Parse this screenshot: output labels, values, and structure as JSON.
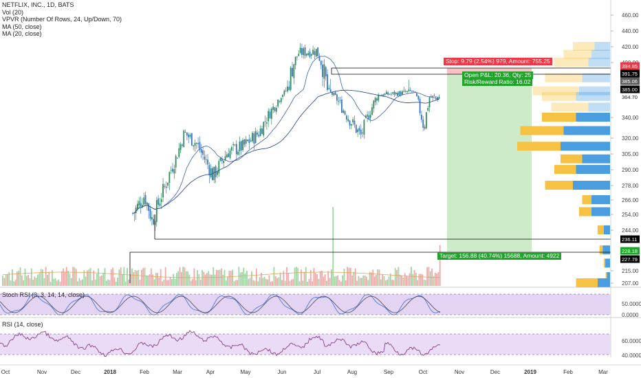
{
  "legend": {
    "title": "NETFLIX, INC., 1D, BATS",
    "vol": "Vol (20)",
    "vpvr": "VPVR (Number Of Rows, 24, Up/Down, 70)",
    "ma50": "MA (50, close)",
    "ma20": "MA (20, close)"
  },
  "panes": {
    "stoch_title": "Stoch RSI (3, 3, 14, 14, close)",
    "rsi_title": "RSI (14, close)"
  },
  "position": {
    "stop_label": "Stop: 9.79 (2.54%) 979, Amount: 755.25",
    "open_label": "Open P&L: 20.36, Qty: 25",
    "rr_label": "Risk/Reward Ratio: 16.02",
    "target_label": "Target: 156.88 (40.74%) 15688, Amount: 4922"
  },
  "price_labels": {
    "stop": "394.85",
    "hline_top": "391.75",
    "mid": "385.06",
    "entry": "385.00",
    "last": "364.70",
    "hline_low": "236.11",
    "target": "228.18",
    "support": "227.79"
  },
  "colors": {
    "up": "#2e8b57",
    "down": "#3b73c7",
    "ma": "#4a6fb0",
    "stop_red": "#f23645",
    "target_green": "#22a32b",
    "profit_zone": "#c6e8c0",
    "vpvr_up": "#f5c243",
    "vpvr_down": "#4a9ee0",
    "stoch_bg": "#e3d4f3",
    "rsi_bg": "#eadcf6"
  },
  "chart_data": {
    "type": "candlestick",
    "x_tick_labels": [
      "Oct",
      "Nov",
      "Dec",
      "2018",
      "Feb",
      "Mar",
      "Apr",
      "May",
      "Jun",
      "Jul",
      "Aug",
      "Sep",
      "Oct",
      "Nov",
      "Dec",
      "2019",
      "Feb",
      "Mar"
    ],
    "y_tick_labels": [
      "460.00",
      "440.00",
      "420.00",
      "400.00",
      "340.00",
      "320.00",
      "305.00",
      "290.00",
      "278.00",
      "266.00",
      "254.00",
      "244.00",
      "215.00",
      "207.00"
    ],
    "stoch_ticks": [
      "50.0000",
      "0.0000"
    ],
    "rsi_ticks": [
      "60.0000",
      "40.0000"
    ],
    "price_series_approx": [
      {
        "x": "2018-01-22",
        "y": 255
      },
      {
        "x": "2018-02-01",
        "y": 270
      },
      {
        "x": "2018-02-08",
        "y": 250
      },
      {
        "x": "2018-03-01",
        "y": 300
      },
      {
        "x": "2018-03-09",
        "y": 325
      },
      {
        "x": "2018-03-20",
        "y": 315
      },
      {
        "x": "2018-04-04",
        "y": 285
      },
      {
        "x": "2018-04-17",
        "y": 307
      },
      {
        "x": "2018-05-01",
        "y": 312
      },
      {
        "x": "2018-05-15",
        "y": 325
      },
      {
        "x": "2018-06-01",
        "y": 360
      },
      {
        "x": "2018-06-20",
        "y": 412
      },
      {
        "x": "2018-07-06",
        "y": 415
      },
      {
        "x": "2018-07-17",
        "y": 380
      },
      {
        "x": "2018-08-01",
        "y": 345
      },
      {
        "x": "2018-08-15",
        "y": 322
      },
      {
        "x": "2018-08-31",
        "y": 370
      },
      {
        "x": "2018-09-20",
        "y": 375
      },
      {
        "x": "2018-10-01",
        "y": 380
      },
      {
        "x": "2018-10-11",
        "y": 330
      },
      {
        "x": "2018-10-16",
        "y": 364.7
      }
    ],
    "vpvr_rows": [
      {
        "price": 420,
        "up": 0.35,
        "down": 0.25
      },
      {
        "price": 410,
        "up": 0.45,
        "down": 0.3
      },
      {
        "price": 400,
        "up": 0.55,
        "down": 0.35
      },
      {
        "price": 390,
        "up": 0.6,
        "down": 0.45
      },
      {
        "price": 380,
        "up": 0.75,
        "down": 0.5
      },
      {
        "price": 365,
        "up": 0.55,
        "down": 0.55
      },
      {
        "price": 352,
        "up": 0.6,
        "down": 0.35
      },
      {
        "price": 340,
        "up": 0.55,
        "down": 0.55
      },
      {
        "price": 327,
        "up": 0.7,
        "down": 0.75
      },
      {
        "price": 312,
        "up": 0.7,
        "down": 0.8
      },
      {
        "price": 300,
        "up": 0.35,
        "down": 0.45
      },
      {
        "price": 290,
        "up": 0.35,
        "down": 0.55
      },
      {
        "price": 278,
        "up": 0.45,
        "down": 0.6
      },
      {
        "price": 266,
        "up": 0.15,
        "down": 0.3
      },
      {
        "price": 256,
        "up": 0.2,
        "down": 0.3
      },
      {
        "price": 244,
        "up": 0.1,
        "down": 0.1
      },
      {
        "price": 229,
        "up": 0.05,
        "down": 0.12
      },
      {
        "price": 220,
        "up": 0.02,
        "down": 0.08
      },
      {
        "price": 211,
        "up": 0.02,
        "down": 0.05
      },
      {
        "price": 207,
        "up": 0.35,
        "down": 0.2
      }
    ]
  }
}
